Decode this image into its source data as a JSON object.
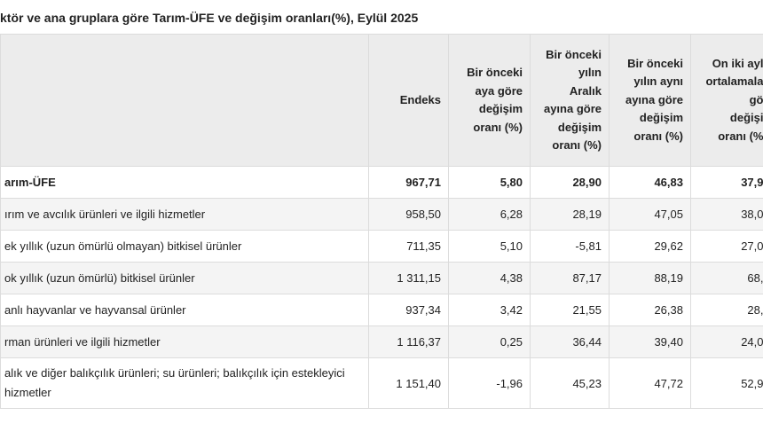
{
  "title": "ktör ve ana gruplara göre Tarım-ÜFE ve değişim oranları(%), Eylül 2025",
  "table": {
    "columns": [
      [
        "Endeks"
      ],
      [
        "Bir önceki",
        "aya göre",
        "değişim",
        "oranı (%)"
      ],
      [
        "Bir önceki",
        "yılın",
        "Aralık",
        "ayına göre",
        "değişim",
        "oranı (%)"
      ],
      [
        "Bir önceki",
        "yılın aynı",
        "ayına göre",
        "değişim",
        "oranı (%)"
      ],
      [
        "On iki ayl",
        "ortalamala",
        "gö",
        "değişi",
        "oranı (%"
      ]
    ],
    "rows": [
      [
        "arım-ÜFE",
        "967,71",
        "5,80",
        "28,90",
        "46,83",
        "37,9"
      ],
      [
        "ırım ve avcılık ürünleri ve ilgili hizmetler",
        "958,50",
        "6,28",
        "28,19",
        "47,05",
        "38,0"
      ],
      [
        "ek yıllık (uzun ömürlü olmayan) bitkisel ürünler",
        "711,35",
        "5,10",
        "-5,81",
        "29,62",
        "27,0"
      ],
      [
        "ok yıllık (uzun ömürlü) bitkisel ürünler",
        "1 311,15",
        "4,38",
        "87,17",
        "88,19",
        "68,"
      ],
      [
        "anlı hayvanlar ve hayvansal ürünler",
        "937,34",
        "3,42",
        "21,55",
        "26,38",
        "28,"
      ],
      [
        "rman ürünleri ve ilgili hizmetler",
        "1 116,37",
        "0,25",
        "36,44",
        "39,40",
        "24,0"
      ],
      [
        "alık ve diğer balıkçılık ürünleri; su ürünleri; balıkçılık için estekleyici hizmetler",
        "1 151,40",
        "-1,96",
        "45,23",
        "47,72",
        "52,9"
      ]
    ]
  }
}
